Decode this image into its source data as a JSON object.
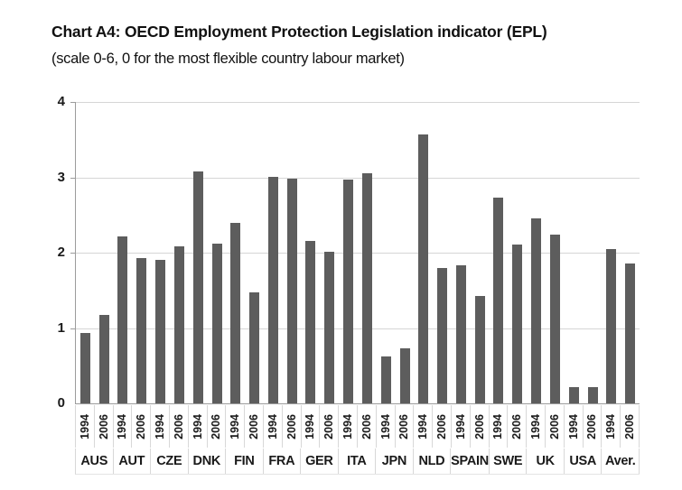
{
  "header": {
    "title": "Chart A4: OECD Employment Protection Legislation indicator (EPL)",
    "subtitle": "(scale 0-6, 0 for the most flexible country labour market)"
  },
  "chart_data": {
    "type": "bar",
    "title": "Chart A4: OECD Employment Protection Legislation indicator (EPL)",
    "subtitle": "(scale 0-6, 0 for the most flexible country labour market)",
    "categories": [
      "AUS",
      "AUT",
      "CZE",
      "DNK",
      "FIN",
      "FRA",
      "GER",
      "ITA",
      "JPN",
      "NLD",
      "SPAIN",
      "SWE",
      "UK",
      "USA",
      "Aver."
    ],
    "series": [
      {
        "name": "1994",
        "values": [
          0.94,
          2.21,
          1.9,
          3.08,
          2.4,
          3.01,
          2.15,
          2.97,
          0.62,
          3.57,
          1.83,
          2.73,
          2.46,
          0.21,
          2.05
        ]
      },
      {
        "name": "2006",
        "values": [
          1.17,
          1.93,
          2.08,
          2.12,
          1.47,
          2.98,
          2.01,
          3.05,
          0.73,
          1.8,
          1.42,
          2.11,
          2.24,
          0.21,
          1.86
        ]
      }
    ],
    "ylim": [
      0,
      4
    ],
    "yticks": [
      0,
      1,
      2,
      3,
      4
    ],
    "grid": "horizontal",
    "legend_position": "none",
    "bar_color": "#5d5d5d",
    "gridline_color": "#d6d6d6"
  }
}
